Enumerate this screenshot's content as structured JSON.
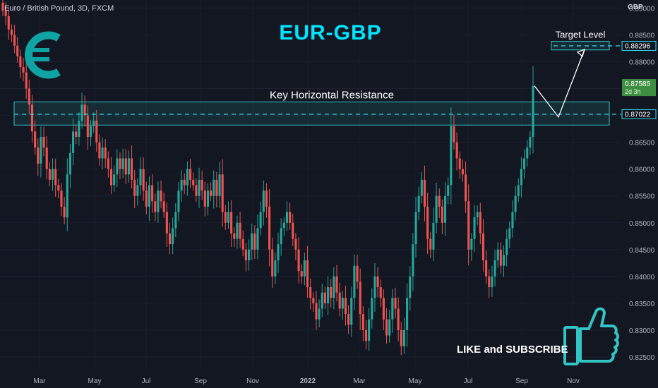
{
  "symbol_label": "Euro / British Pound, 3D, FXCM",
  "cta": "LIKE and SUBSCRIBE",
  "icons": [
    "euro-icon",
    "thumbs-up-icon"
  ],
  "colors": {
    "background": "#131722",
    "accent": "#00e5ff",
    "up": "#26a69a",
    "down": "#ef5350",
    "zone": "#33c4c4"
  },
  "chart_data": {
    "type": "candlestick",
    "title": "EUR-GBP",
    "currency_label": "GBP",
    "y_ticks": [
      "0.89000",
      "0.88500",
      "0.88000",
      "0.87500",
      "0.87000",
      "0.86500",
      "0.86000",
      "0.85500",
      "0.85000",
      "0.84500",
      "0.84000",
      "0.83500",
      "0.83000",
      "0.82500"
    ],
    "x_ticks": [
      "Mar",
      "May",
      "Jul",
      "Sep",
      "Nov",
      "2022",
      "Mar",
      "May",
      "Jul",
      "Sep",
      "Nov"
    ],
    "ylim": [
      0.8225,
      0.8915
    ],
    "price_labels": [
      {
        "value": 0.88296,
        "text": "0.88296",
        "style": "outline"
      },
      {
        "value": 0.87585,
        "text": "0.87585",
        "sub": "2d 3h",
        "style": "filled"
      },
      {
        "value": 0.87022,
        "text": "0.87022",
        "style": "outline"
      }
    ],
    "annotations": {
      "resistance_label": "Key Horizontal Resistance",
      "resistance_zone": [
        0.8682,
        0.8725
      ],
      "resistance_level": 0.87022,
      "target_label": "Target Level",
      "target_zone": [
        0.8822,
        0.8838
      ],
      "target_level": 0.88296,
      "projection": [
        0.8755,
        0.8697,
        0.8823
      ]
    },
    "closes": [
      0.8895,
      0.8885,
      0.886,
      0.885,
      0.883,
      0.881,
      0.879,
      0.878,
      0.875,
      0.872,
      0.867,
      0.864,
      0.861,
      0.866,
      0.864,
      0.86,
      0.858,
      0.86,
      0.857,
      0.856,
      0.853,
      0.851,
      0.859,
      0.863,
      0.867,
      0.866,
      0.869,
      0.872,
      0.87,
      0.866,
      0.868,
      0.869,
      0.865,
      0.862,
      0.864,
      0.862,
      0.86,
      0.857,
      0.859,
      0.862,
      0.86,
      0.862,
      0.859,
      0.862,
      0.858,
      0.855,
      0.857,
      0.86,
      0.856,
      0.853,
      0.857,
      0.854,
      0.852,
      0.856,
      0.854,
      0.852,
      0.848,
      0.846,
      0.849,
      0.852,
      0.856,
      0.858,
      0.857,
      0.86,
      0.858,
      0.857,
      0.855,
      0.858,
      0.856,
      0.853,
      0.856,
      0.855,
      0.858,
      0.855,
      0.859,
      0.852,
      0.85,
      0.852,
      0.848,
      0.847,
      0.85,
      0.847,
      0.845,
      0.843,
      0.845,
      0.848,
      0.845,
      0.849,
      0.852,
      0.856,
      0.853,
      0.845,
      0.84,
      0.843,
      0.846,
      0.849,
      0.85,
      0.852,
      0.85,
      0.847,
      0.845,
      0.841,
      0.84,
      0.843,
      0.838,
      0.836,
      0.835,
      0.832,
      0.834,
      0.837,
      0.835,
      0.838,
      0.836,
      0.84,
      0.837,
      0.834,
      0.836,
      0.833,
      0.831,
      0.836,
      0.842,
      0.839,
      0.833,
      0.83,
      0.828,
      0.832,
      0.836,
      0.84,
      0.838,
      0.836,
      0.832,
      0.829,
      0.832,
      0.836,
      0.834,
      0.83,
      0.827,
      0.83,
      0.836,
      0.84,
      0.846,
      0.852,
      0.855,
      0.858,
      0.853,
      0.847,
      0.845,
      0.85,
      0.855,
      0.853,
      0.85,
      0.855,
      0.857,
      0.868,
      0.865,
      0.862,
      0.86,
      0.859,
      0.854,
      0.845,
      0.847,
      0.851,
      0.852,
      0.848,
      0.843,
      0.84,
      0.838,
      0.84,
      0.843,
      0.845,
      0.842,
      0.844,
      0.847,
      0.849,
      0.852,
      0.855,
      0.857,
      0.86,
      0.862,
      0.864,
      0.866,
      0.8755
    ]
  }
}
